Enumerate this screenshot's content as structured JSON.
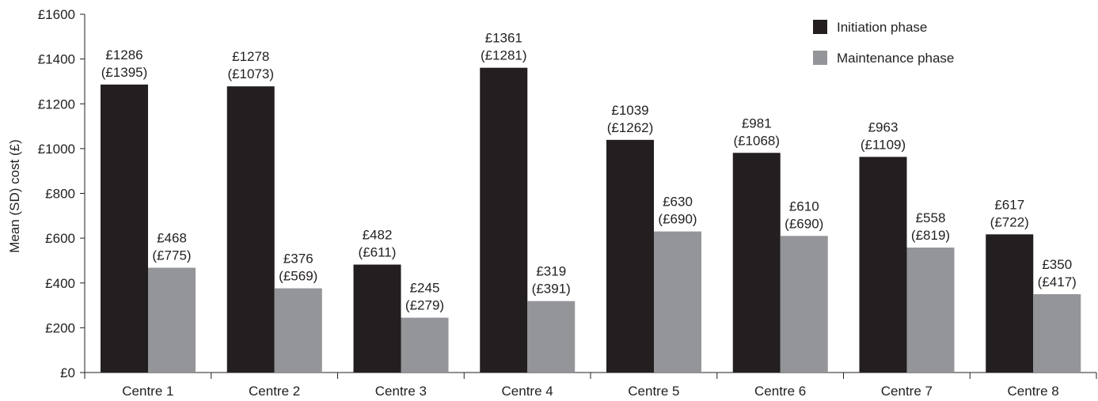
{
  "chart_data": {
    "type": "bar",
    "ylabel": "Mean (SD) cost (£)",
    "ylim": [
      0,
      1600
    ],
    "y_ticks": [
      0,
      200,
      400,
      600,
      800,
      1000,
      1200,
      1400,
      1600
    ],
    "y_tick_labels": [
      "£0",
      "£200",
      "£400",
      "£600",
      "£800",
      "£1000",
      "£1200",
      "£1400",
      "£1600"
    ],
    "categories": [
      "Centre 1",
      "Centre 2",
      "Centre 3",
      "Centre 4",
      "Centre 5",
      "Centre 6",
      "Centre 7",
      "Centre 8"
    ],
    "legend_position": "top-right",
    "grid": false,
    "series": [
      {
        "name": "Initiation phase",
        "color": "#231f20",
        "values": [
          1286,
          1278,
          482,
          1361,
          1039,
          981,
          963,
          617
        ],
        "labels": [
          "£1286",
          "£1278",
          "£482",
          "£1361",
          "£1039",
          "£981",
          "£963",
          "£617"
        ],
        "sd_labels": [
          "(£1395)",
          "(£1073)",
          "(£611)",
          "(£1281)",
          "(£1262)",
          "(£1068)",
          "(£1109)",
          "(£722)"
        ]
      },
      {
        "name": "Maintenance phase",
        "color": "#939598",
        "values": [
          468,
          376,
          245,
          319,
          630,
          610,
          558,
          350
        ],
        "labels": [
          "£468",
          "£376",
          "£245",
          "£319",
          "£630",
          "£610",
          "£558",
          "£350"
        ],
        "sd_labels": [
          "(£775)",
          "(£569)",
          "(£279)",
          "(£391)",
          "(£690)",
          "(£690)",
          "(£819)",
          "(£417)"
        ]
      }
    ]
  }
}
